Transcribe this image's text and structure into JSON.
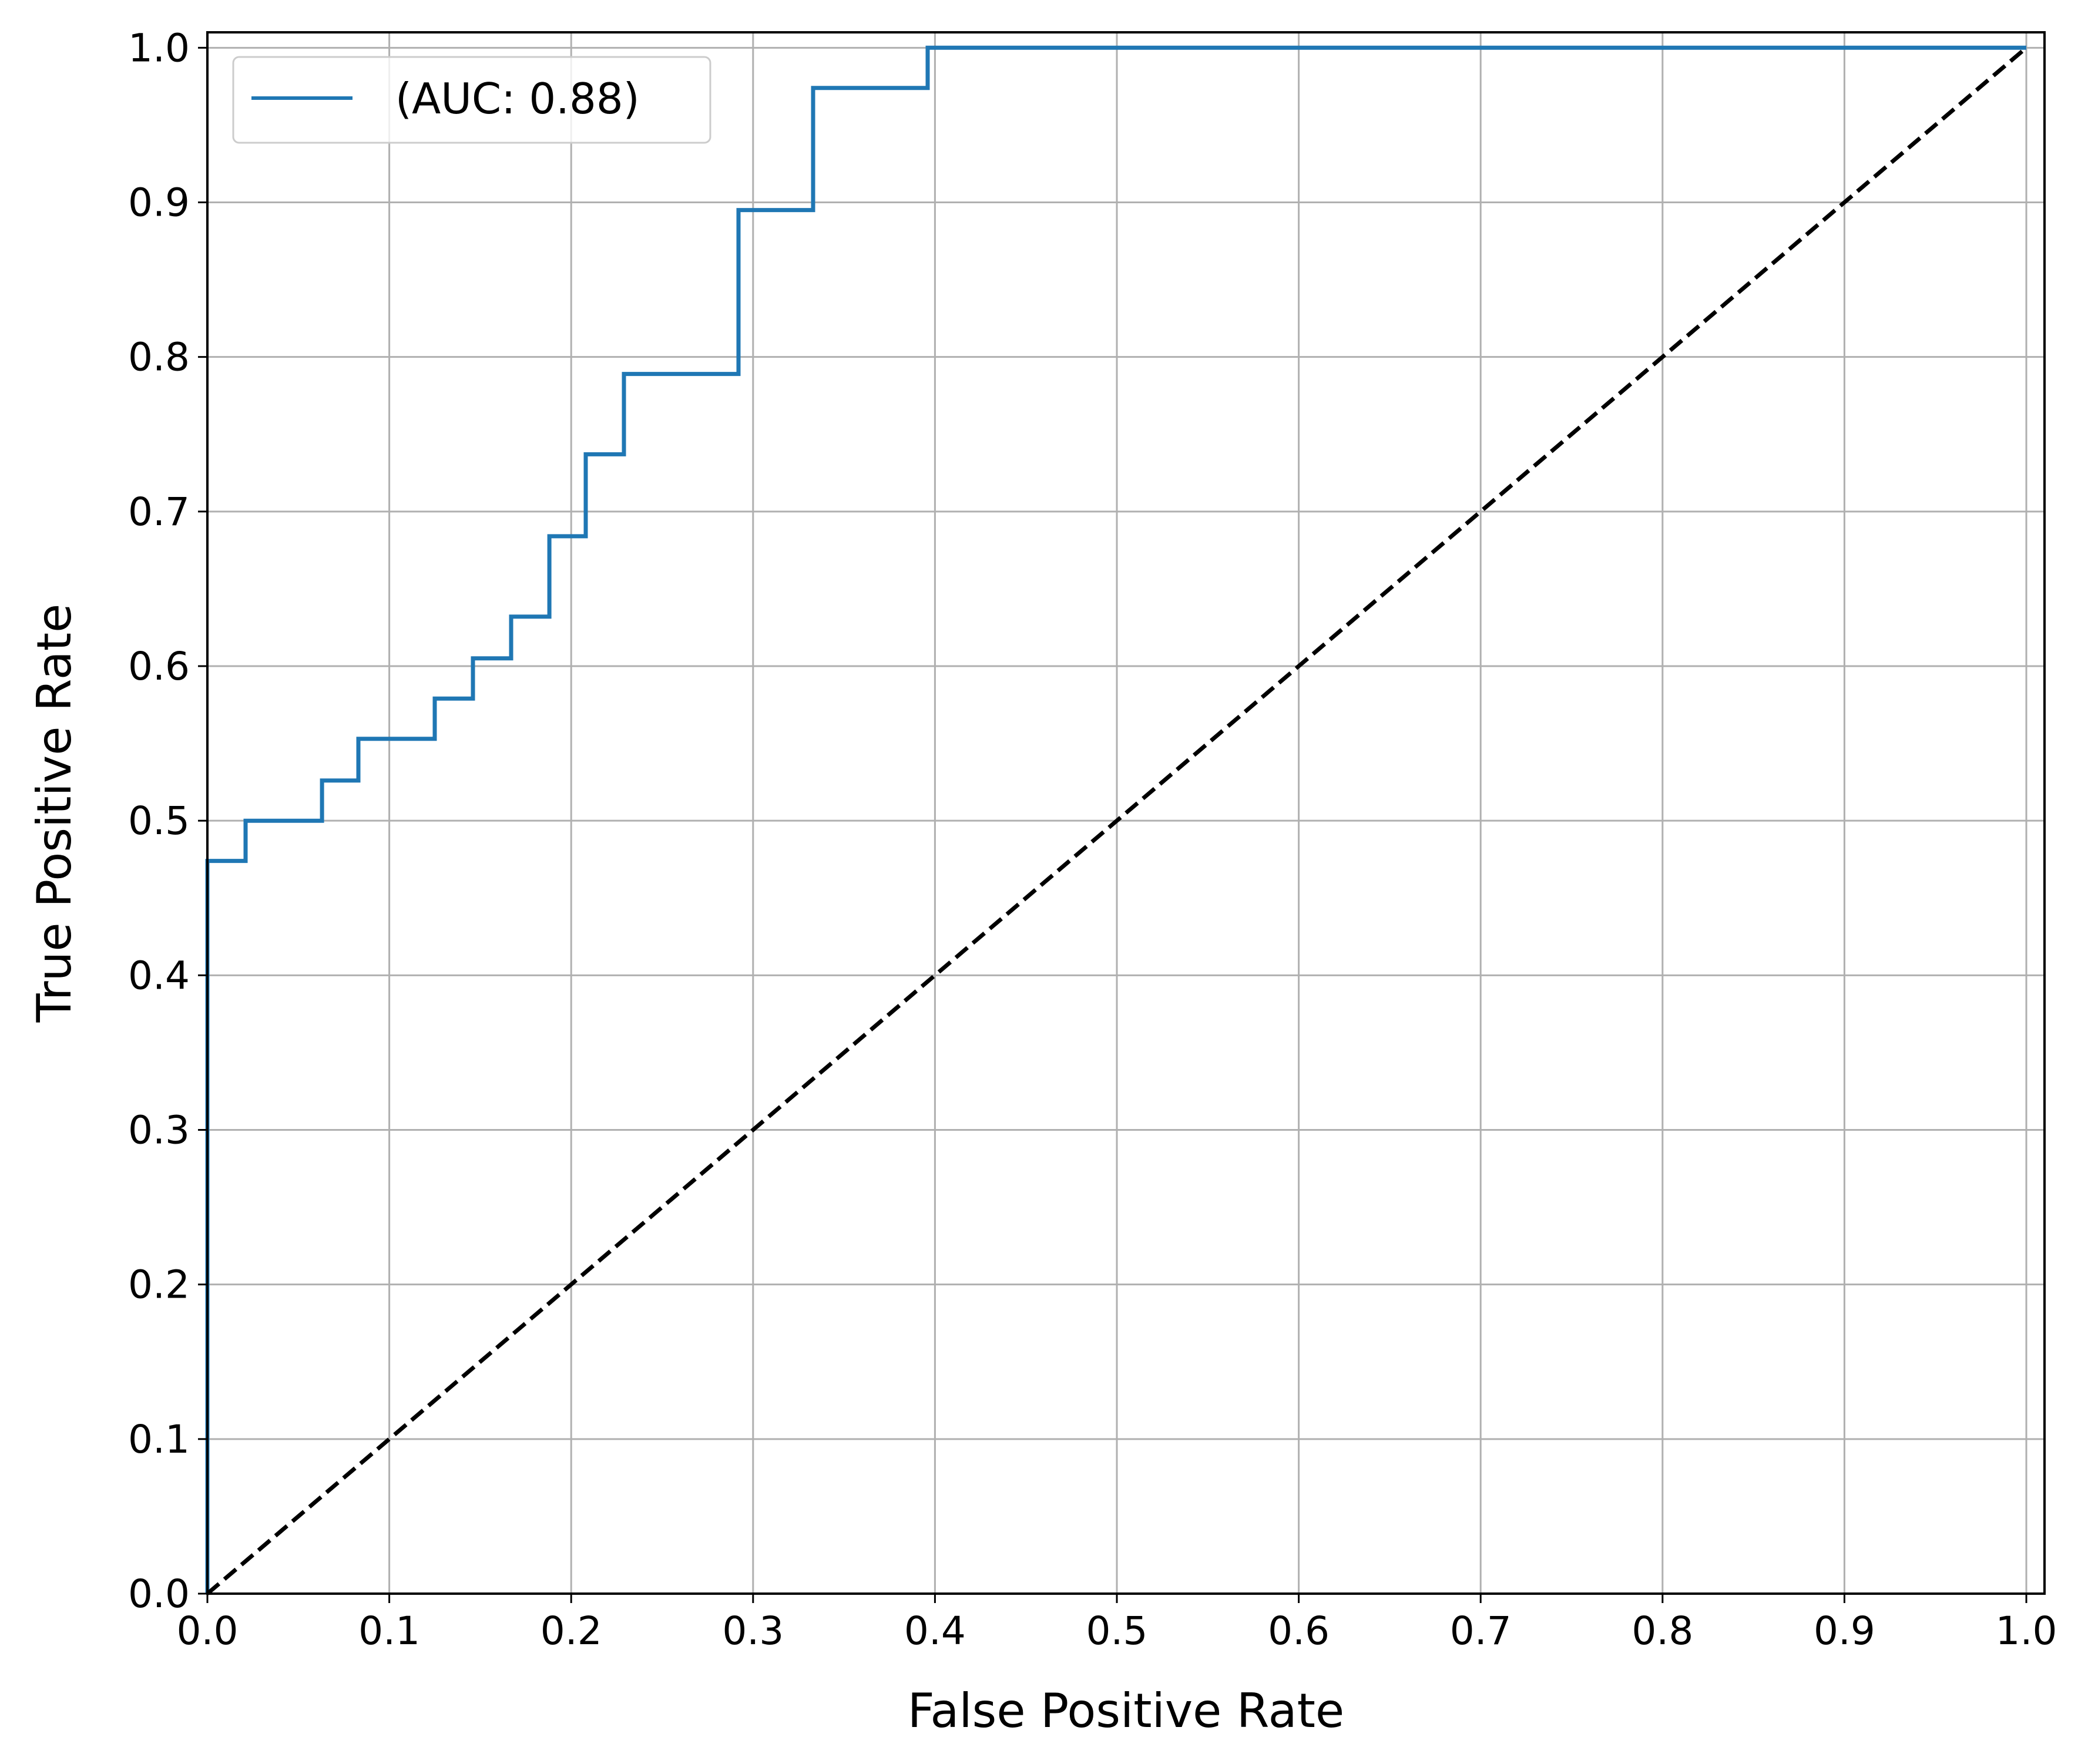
{
  "chart_data": {
    "type": "line",
    "title": "",
    "xlabel": "False Positive Rate",
    "ylabel": "True Positive Rate",
    "xlim": [
      0.0,
      1.0
    ],
    "ylim": [
      0.0,
      1.0
    ],
    "xticks": [
      "0.0",
      "0.1",
      "0.2",
      "0.3",
      "0.4",
      "0.5",
      "0.6",
      "0.7",
      "0.8",
      "0.9",
      "1.0"
    ],
    "yticks": [
      "0.0",
      "0.1",
      "0.2",
      "0.3",
      "0.4",
      "0.5",
      "0.6",
      "0.7",
      "0.8",
      "0.9",
      "1.0"
    ],
    "grid": true,
    "legend_position": "top-left",
    "series": [
      {
        "name": " (AUC: 0.88)",
        "color": "#1f77b4",
        "style": "solid",
        "x": [
          0.0,
          0.0,
          0.0,
          0.021,
          0.021,
          0.063,
          0.063,
          0.083,
          0.083,
          0.125,
          0.125,
          0.146,
          0.146,
          0.167,
          0.167,
          0.188,
          0.188,
          0.208,
          0.208,
          0.229,
          0.229,
          0.292,
          0.292,
          0.333,
          0.333,
          0.396,
          0.396,
          1.0
        ],
        "y": [
          0.0,
          0.0,
          0.474,
          0.474,
          0.5,
          0.5,
          0.526,
          0.526,
          0.553,
          0.553,
          0.579,
          0.579,
          0.605,
          0.605,
          0.632,
          0.632,
          0.684,
          0.684,
          0.737,
          0.737,
          0.789,
          0.789,
          0.895,
          0.895,
          0.974,
          0.974,
          1.0,
          1.0
        ]
      },
      {
        "color": "#000000",
        "style": "dashed",
        "x": [
          0.0,
          1.0
        ],
        "y": [
          0.0,
          1.0
        ]
      }
    ]
  }
}
